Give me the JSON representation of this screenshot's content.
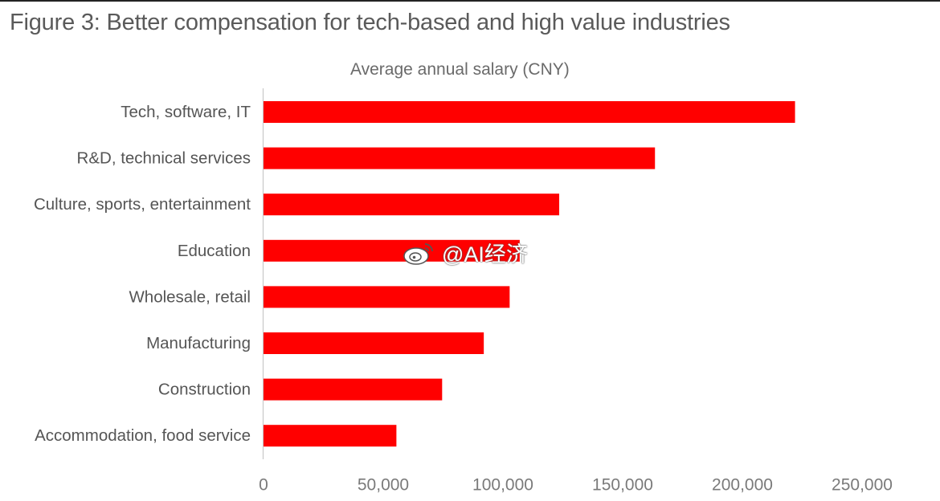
{
  "page": {
    "title": "Figure 3: Better compensation for tech-based and high value industries",
    "subtitle": "Average annual salary (CNY)",
    "watermark_text": "@AI经济"
  },
  "colors": {
    "bar": "#ff0000",
    "axis": "#c8c8c8",
    "label": "#555555",
    "tick": "#7a7a7a"
  },
  "chart_data": {
    "type": "bar",
    "orientation": "horizontal",
    "title": "Figure 3: Better compensation for tech-based and high value industries",
    "subtitle": "Average annual salary (CNY)",
    "categories": [
      "Tech, software, IT",
      "R&D, technical services",
      "Culture, sports, entertainment",
      "Education",
      "Wholesale, retail",
      "Manufacturing",
      "Construction",
      "Accommodation, food service"
    ],
    "values": [
      222000,
      163500,
      123500,
      107000,
      102800,
      92000,
      74600,
      55500
    ],
    "xlim": [
      0,
      250000
    ],
    "xticks": [
      0,
      50000,
      100000,
      150000,
      200000,
      250000
    ],
    "xtick_labels": [
      "0",
      "50,000",
      "100,000",
      "150,000",
      "200,000",
      "250,000"
    ],
    "grid": false,
    "legend": "none"
  }
}
